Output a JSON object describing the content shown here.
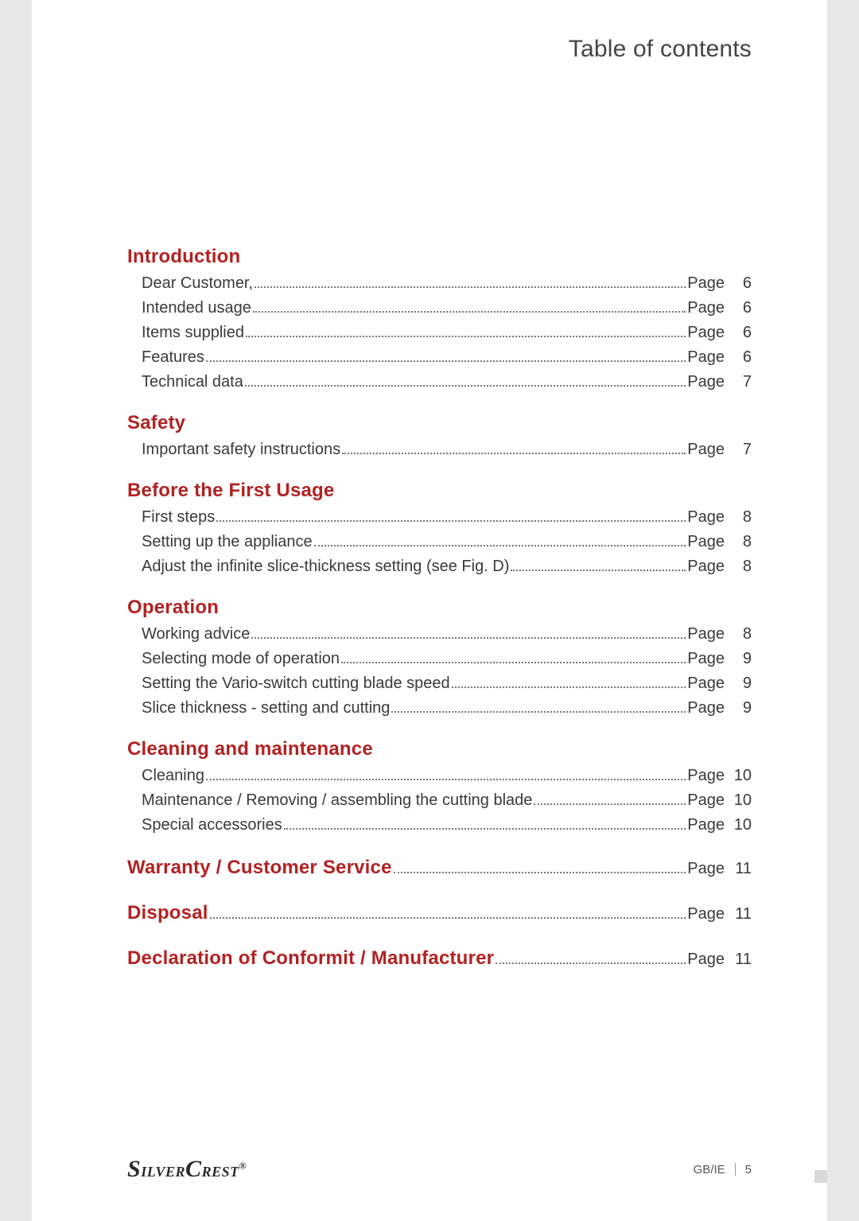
{
  "header": {
    "title": "Table of contents"
  },
  "colors": {
    "page_bg": "#ffffff",
    "outer_bg": "#e8e8e8",
    "heading": "#b22222",
    "text": "#3a3a3a"
  },
  "page_word": "Page",
  "sections": [
    {
      "title": "Introduction",
      "items": [
        {
          "label": "Dear Customer,",
          "page": "6"
        },
        {
          "label": "Intended usage",
          "page": "6"
        },
        {
          "label": "Items supplied",
          "page": "6"
        },
        {
          "label": "Features",
          "page": "6"
        },
        {
          "label": "Technical data",
          "page": "7"
        }
      ]
    },
    {
      "title": "Safety",
      "items": [
        {
          "label": "Important safety instructions",
          "page": "7"
        }
      ]
    },
    {
      "title": "Before the First Usage",
      "items": [
        {
          "label": "First steps",
          "page": "8"
        },
        {
          "label": "Setting up the appliance",
          "page": "8"
        },
        {
          "label": "Adjust the infinite slice-thickness setting (see Fig. D)",
          "page": "8"
        }
      ]
    },
    {
      "title": "Operation",
      "items": [
        {
          "label": "Working advice",
          "page": "8"
        },
        {
          "label": "Selecting mode of operation",
          "page": "9"
        },
        {
          "label": "Setting the Vario-switch cutting blade speed",
          "page": "9"
        },
        {
          "label": "Slice thickness - setting and cutting",
          "page": "9"
        }
      ]
    },
    {
      "title": "Cleaning and maintenance",
      "items": [
        {
          "label": "Cleaning",
          "page": "10"
        },
        {
          "label": "Maintenance / Removing / assembling the cutting blade",
          "page": "10"
        },
        {
          "label": "Special accessories",
          "page": "10"
        }
      ]
    }
  ],
  "inline_sections": [
    {
      "title": "Warranty / Customer Service",
      "page": "11"
    },
    {
      "title": "Disposal",
      "page": "11"
    },
    {
      "title": "Declaration of Conformit / Manufacturer",
      "page": "11"
    }
  ],
  "footer": {
    "brand": "SilverCrest",
    "locale": "GB/IE",
    "page_number": "5"
  }
}
